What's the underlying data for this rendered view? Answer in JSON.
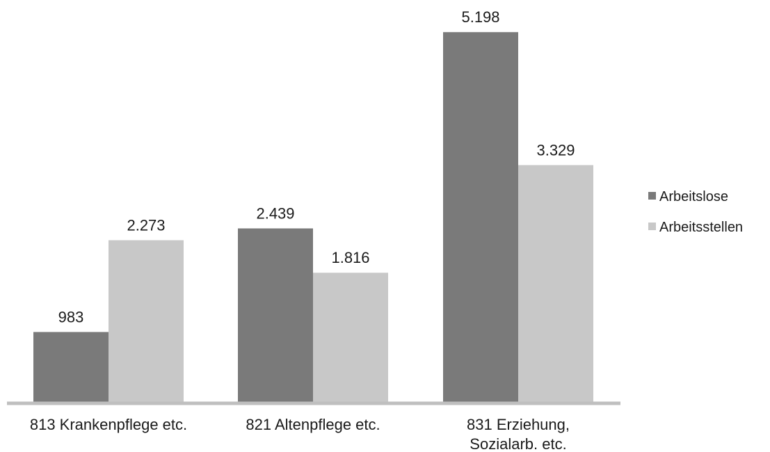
{
  "chart_data": {
    "type": "bar",
    "categories": [
      [
        "813 Krankenpflege etc."
      ],
      [
        "821 Altenpflege etc."
      ],
      [
        "831 Erziehung,",
        "Sozialarb. etc."
      ]
    ],
    "series": [
      {
        "name": "Arbeitslose",
        "color": "#7a7a7a",
        "values": [
          983,
          2439,
          5198
        ],
        "labels": [
          "983",
          "2.439",
          "5.198"
        ]
      },
      {
        "name": "Arbeitsstellen",
        "color": "#c8c8c8",
        "values": [
          2273,
          1816,
          3329
        ],
        "labels": [
          "2.273",
          "1.816",
          "3.329"
        ]
      }
    ],
    "ylim": [
      0,
      5200
    ],
    "grid": false,
    "legend_position": "right",
    "axis_color": "#bfbfbf"
  }
}
